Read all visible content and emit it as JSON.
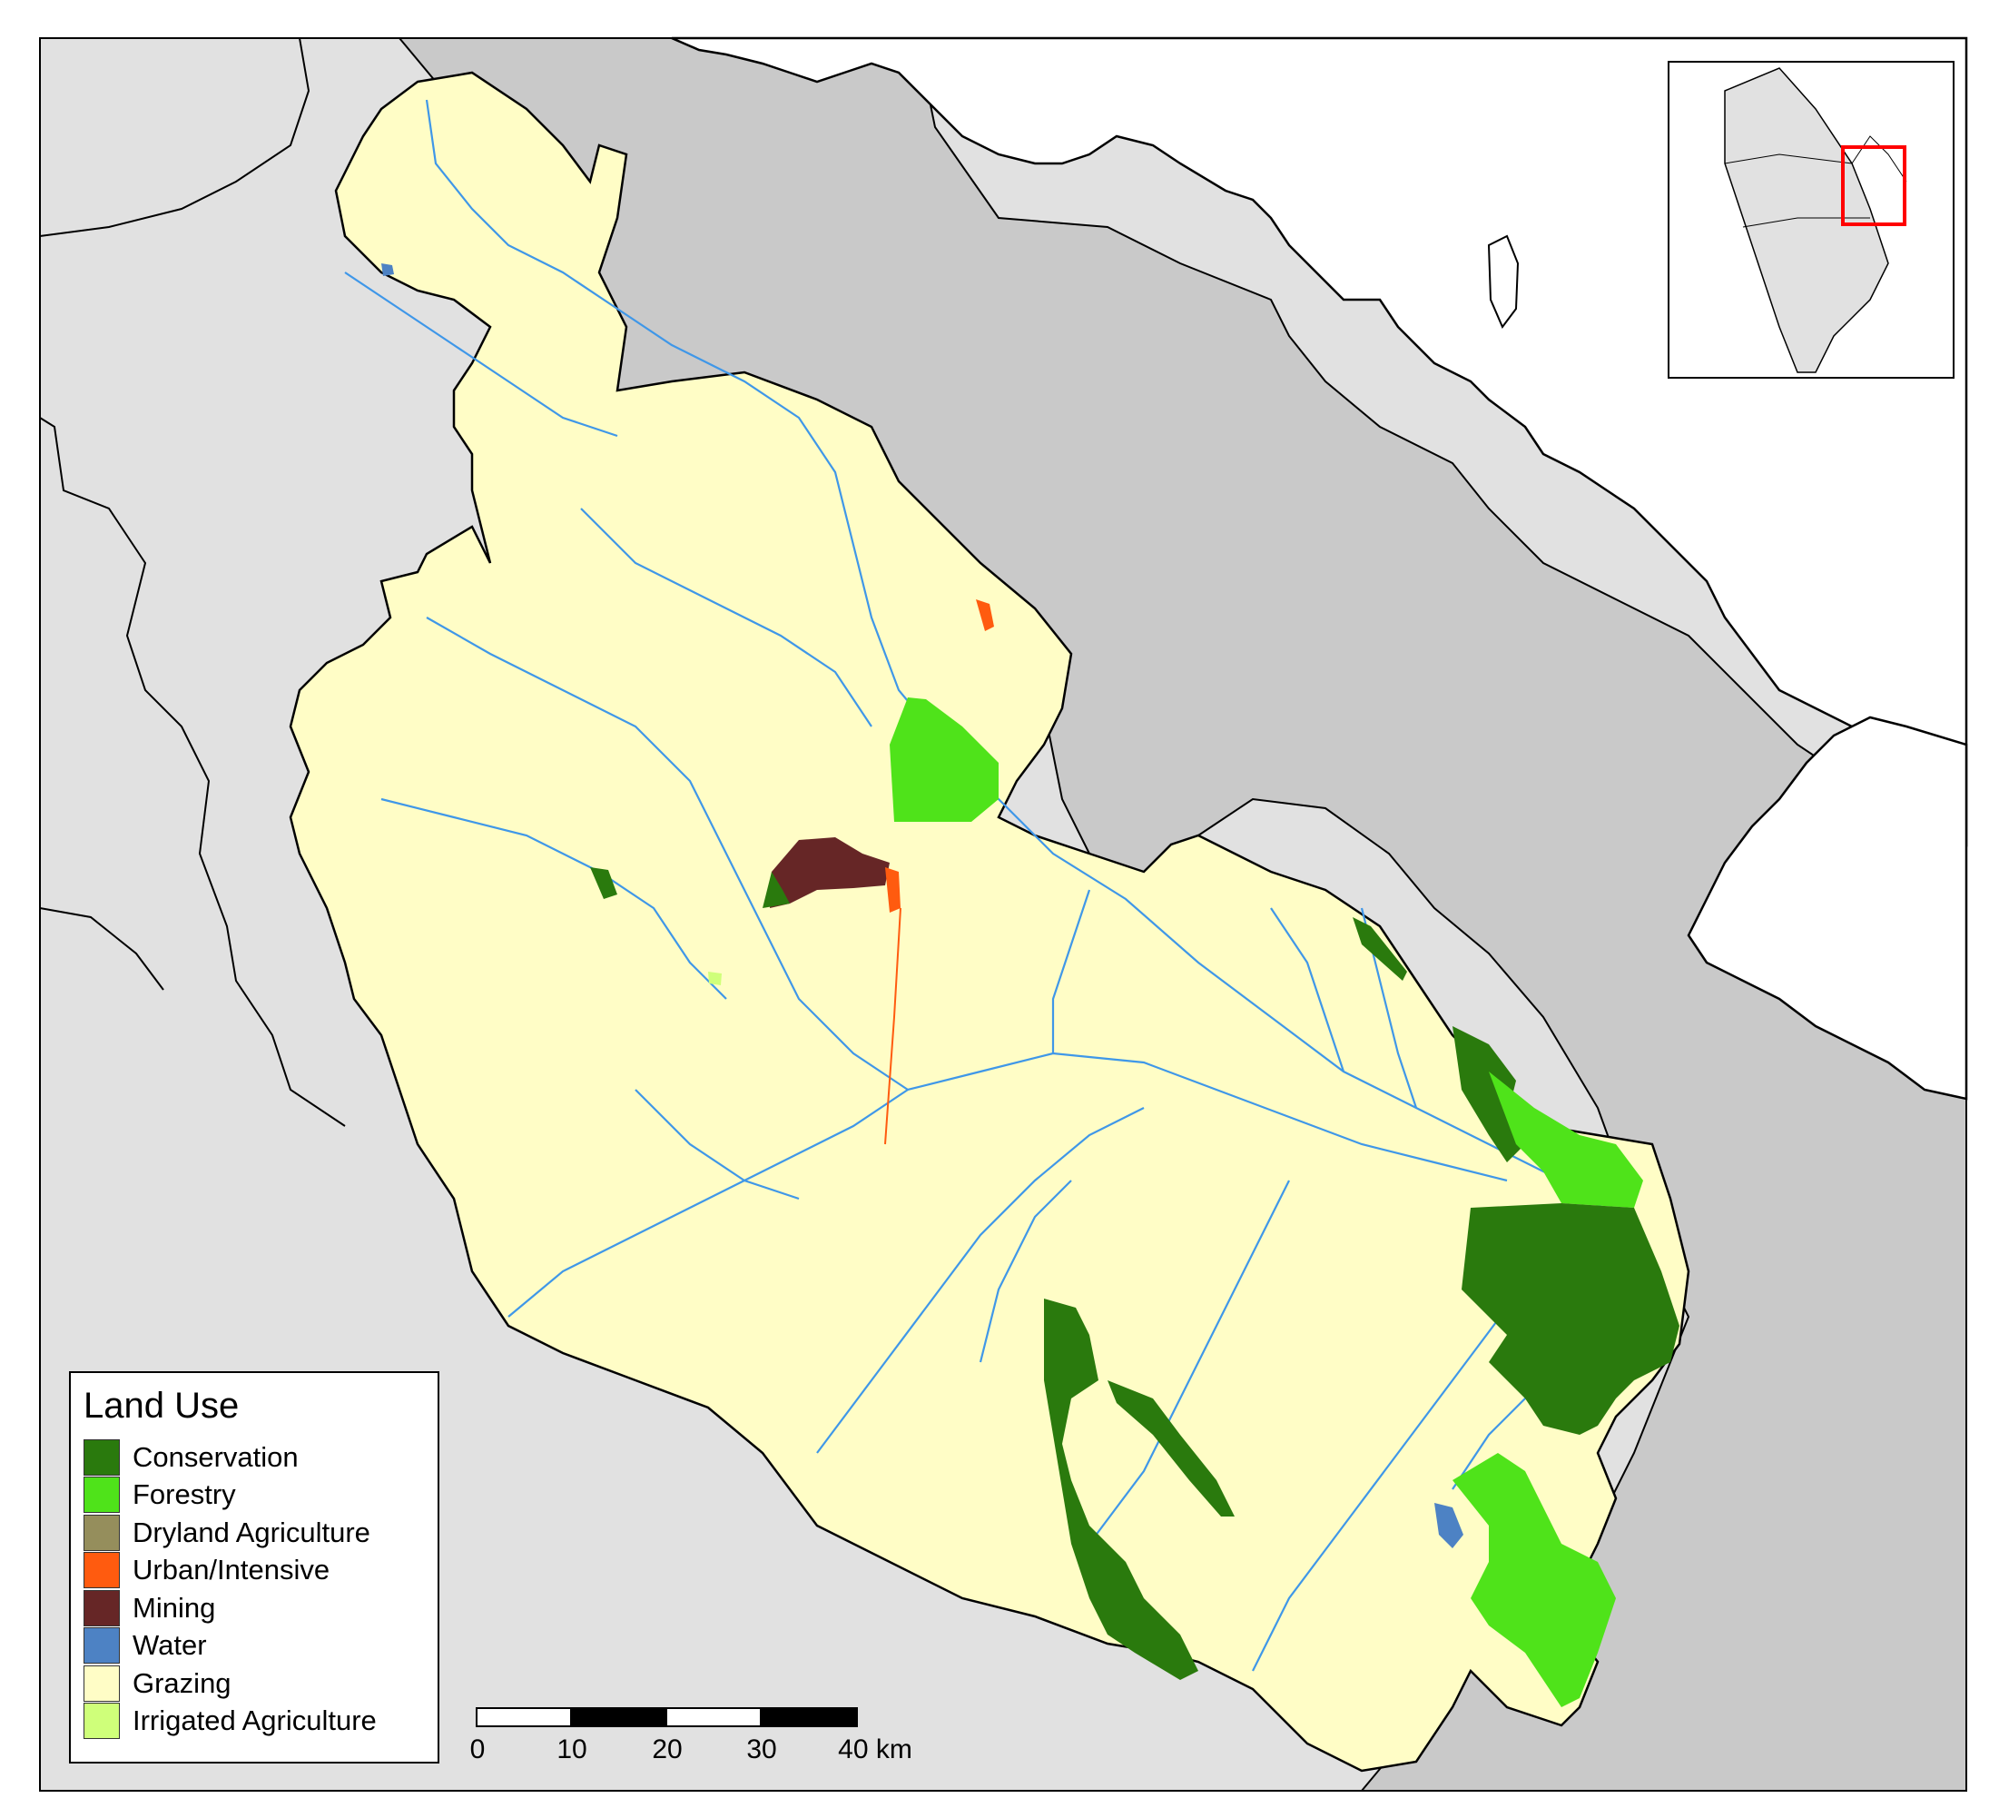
{
  "legend": {
    "title": "Land Use",
    "items": [
      {
        "label": "Conservation",
        "color": "#2a7a0d"
      },
      {
        "label": "Forestry",
        "color": "#4fe31a"
      },
      {
        "label": "Dryland Agriculture",
        "color": "#958e5c"
      },
      {
        "label": "Urban/Intensive",
        "color": "#ff5b0f"
      },
      {
        "label": "Mining",
        "color": "#662626"
      },
      {
        "label": "Water",
        "color": "#4d82c4"
      },
      {
        "label": "Grazing",
        "color": "#fffdc6"
      },
      {
        "label": "Irrigated Agriculture",
        "color": "#cfff7a"
      }
    ]
  },
  "scalebar": {
    "ticks": [
      "0",
      "10",
      "20",
      "30",
      "40 km"
    ]
  },
  "colors": {
    "ocean": "#ffffff",
    "land_outside": "#e1e1e1",
    "neighbour_catchment": "#c9c9c9",
    "grazing": "#fffdc6",
    "rivers": "#3f97e8",
    "inset_highlight": "#ff0000"
  }
}
